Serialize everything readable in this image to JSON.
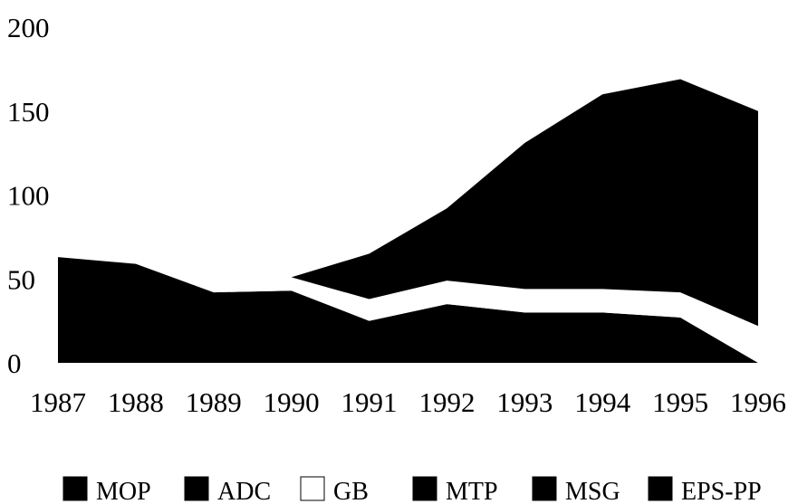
{
  "chart_data": {
    "type": "area",
    "title": "",
    "xlabel": "",
    "ylabel": "",
    "x": [
      1987,
      1988,
      1989,
      1990,
      1991,
      1992,
      1993,
      1994,
      1995,
      1996
    ],
    "x_tick_labels": [
      "1987",
      "1988",
      "1989",
      "1990",
      "1991",
      "1992",
      "1993",
      "1994",
      "1995",
      "1996"
    ],
    "y_tick_labels": [
      "0",
      "50",
      "100",
      "150",
      "200"
    ],
    "ylim": [
      0,
      200
    ],
    "grid": false,
    "legend_position": "bottom",
    "stacked": true,
    "series": [
      {
        "name": "MOP",
        "color": "#000000",
        "values": [
          63,
          59,
          42,
          43,
          25,
          35,
          30,
          30,
          27,
          0
        ]
      },
      {
        "name": "ADC",
        "color": "#000000",
        "values": [
          0,
          0,
          0,
          0,
          0,
          0,
          0,
          0,
          0,
          0
        ]
      },
      {
        "name": "GB",
        "color": "#ffffff",
        "values": [
          0,
          0,
          0,
          8,
          13,
          14,
          14,
          14,
          15,
          22
        ]
      },
      {
        "name": "MTP",
        "color": "#000000",
        "values": [
          0,
          0,
          0,
          0,
          27,
          43,
          87,
          116,
          127,
          128
        ]
      },
      {
        "name": "MSG",
        "color": "#000000",
        "values": [
          0,
          0,
          0,
          0,
          0,
          0,
          0,
          0,
          0,
          0
        ]
      },
      {
        "name": "EPS-PP",
        "color": "#000000",
        "values": [
          0,
          0,
          0,
          0,
          0,
          0,
          0,
          0,
          0,
          0
        ]
      }
    ]
  }
}
